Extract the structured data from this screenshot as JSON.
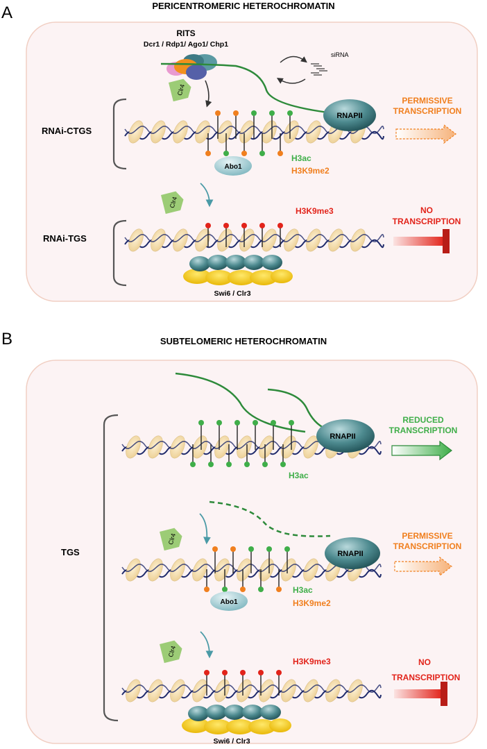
{
  "panel_a": {
    "letter": "A",
    "title": "PERICENTROMERIC HETEROCHROMATIN",
    "rits_title": "RITS",
    "rits_components": "Dcr1 / Rdp1/ Ago1/ Chp1",
    "sirna": "siRNA",
    "clr4": "Clr4",
    "rnapii": "RNAPII",
    "abo1": "Abo1",
    "h3ac": "H3ac",
    "h3k9me2": "H3K9me2",
    "h3k9me3": "H3K9me3",
    "swi6_clr3": "Swi6 / Clr3",
    "row1_label": "RNAi-CTGS",
    "row2_label": "RNAi-TGS",
    "permissive_1": "PERMISSIVE",
    "permissive_2": "TRANSCRIPTION",
    "no_1": "NO",
    "no_2": "TRANSCRIPTION"
  },
  "panel_b": {
    "letter": "B",
    "title": "SUBTELOMERIC HETEROCHROMATIN",
    "tgs_label": "TGS",
    "rnapii": "RNAPII",
    "clr4": "Clr4",
    "abo1": "Abo1",
    "h3ac": "H3ac",
    "h3k9me2": "H3K9me2",
    "h3k9me3": "H3K9me3",
    "swi6_clr3": "Swi6 / Clr3",
    "reduced_1": "REDUCED",
    "reduced_2": "TRANSCRIPTION",
    "permissive_1": "PERMISSIVE",
    "permissive_2": "TRANSCRIPTION",
    "no_1": "NO",
    "no_2": "TRANSCRIPTION"
  },
  "colors": {
    "orange": "#f07f1e",
    "green": "#3fae49",
    "red": "#e2231a",
    "teal": "#2f6e73",
    "nucleosome": "#f6dfb0",
    "dna": "#1f2a6b",
    "panel_bg": "#fcf3f4",
    "panel_border": "#f1cfc3"
  }
}
